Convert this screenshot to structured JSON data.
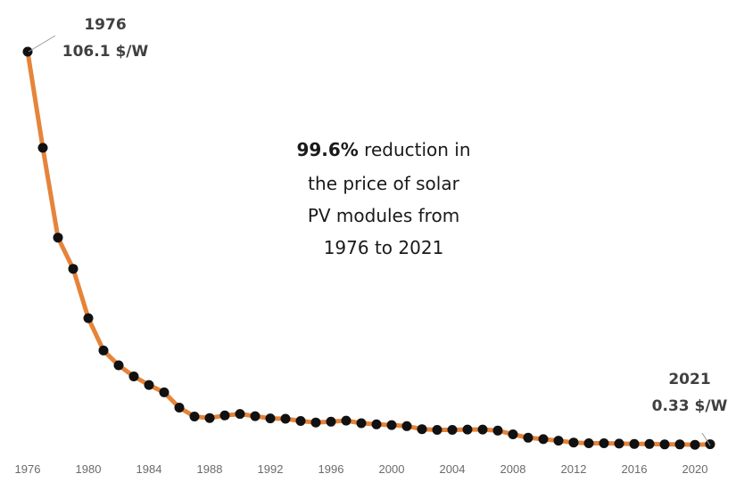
{
  "chart_data": {
    "type": "line",
    "title": "",
    "xlabel": "",
    "ylabel": "",
    "xlim": [
      1976,
      2021
    ],
    "ylim": [
      0,
      106.1
    ],
    "grid": false,
    "legend": "none",
    "colors": {
      "line": "#e5843a",
      "marker": "#111111",
      "tick_text": "#6b6b6b",
      "callout_text": "#404040",
      "leader": "#9a9a9a"
    },
    "x_ticks": [
      "1976",
      "1980",
      "1984",
      "1988",
      "1992",
      "1996",
      "2000",
      "2004",
      "2008",
      "2012",
      "2016",
      "2020"
    ],
    "x": [
      1976,
      1977,
      1978,
      1979,
      1980,
      1981,
      1982,
      1983,
      1984,
      1985,
      1986,
      1987,
      1988,
      1989,
      1990,
      1991,
      1992,
      1993,
      1994,
      1995,
      1996,
      1997,
      1998,
      1999,
      2000,
      2001,
      2002,
      2003,
      2004,
      2005,
      2006,
      2007,
      2008,
      2009,
      2010,
      2011,
      2012,
      2013,
      2014,
      2015,
      2016,
      2017,
      2018,
      2019,
      2020,
      2021
    ],
    "y": [
      106.1,
      80.2,
      56.0,
      47.6,
      34.3,
      25.6,
      21.6,
      18.6,
      16.3,
      14.3,
      10.2,
      7.8,
      7.4,
      8.1,
      8.5,
      7.9,
      7.3,
      7.2,
      6.6,
      6.2,
      6.4,
      6.7,
      6.0,
      5.7,
      5.5,
      5.2,
      4.4,
      4.2,
      4.2,
      4.3,
      4.3,
      4.0,
      3.0,
      2.1,
      1.7,
      1.3,
      0.8,
      0.6,
      0.6,
      0.5,
      0.4,
      0.4,
      0.3,
      0.3,
      0.2,
      0.33
    ],
    "annotations": {
      "start_year": "1976",
      "start_price": "106.1 $/W",
      "end_year": "2021",
      "end_price": "0.33 $/W",
      "note_bold": "99.6%",
      "note_line1_rest": " reduction in",
      "note_line2": "the price of solar",
      "note_line3": "PV modules from",
      "note_line4": "1976 to 2021"
    }
  }
}
